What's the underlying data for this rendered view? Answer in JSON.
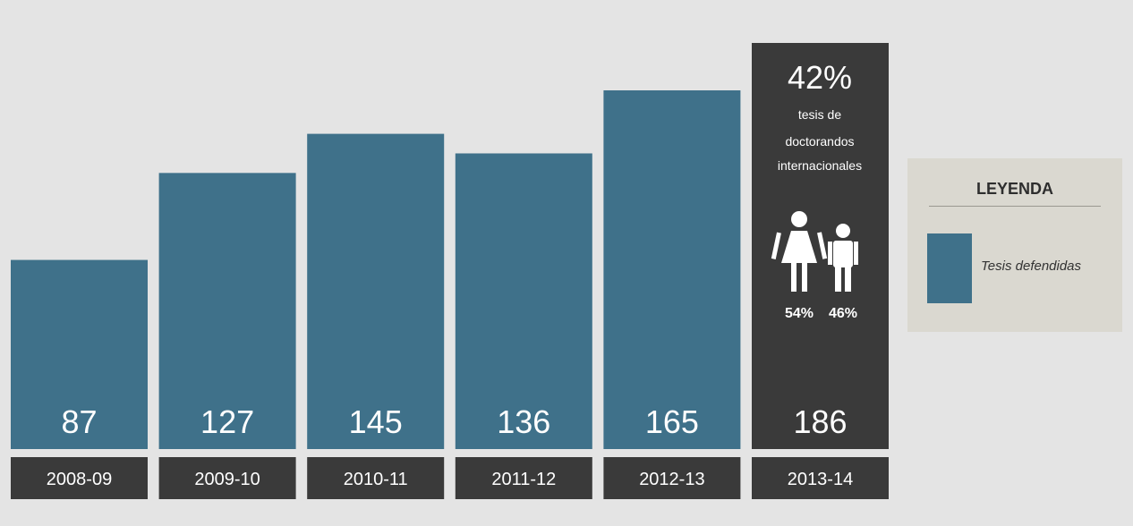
{
  "chart_data": {
    "type": "bar",
    "categories": [
      "2008-09",
      "2009-10",
      "2010-11",
      "2011-12",
      "2012-13",
      "2013-14"
    ],
    "series": [
      {
        "name": "Tesis defendidas",
        "values": [
          87,
          127,
          145,
          136,
          165,
          186
        ]
      }
    ],
    "value_labels": [
      "87",
      "127",
      "145",
      "136",
      "165",
      "186"
    ],
    "highlight": {
      "category": "2013-14",
      "percent_label": "42%",
      "description_lines": [
        "tesis de",
        "doctorandos",
        "internacionales"
      ],
      "female_label": "54%",
      "male_label": "46%"
    },
    "legend": {
      "title": "LEYENDA",
      "label": "Tesis defendidas",
      "position": "right"
    },
    "ylim": [
      0,
      186
    ],
    "grid": false,
    "colors": {
      "bar": "#3f718a",
      "highlight_bar": "#3a3a3a",
      "category_box": "#3a3a3a",
      "background": "#e4e4e4",
      "legend_background": "#dad8d0"
    }
  }
}
